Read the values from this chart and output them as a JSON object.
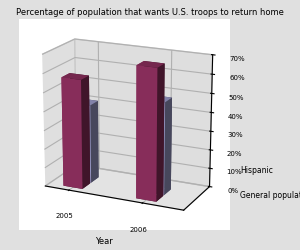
{
  "title": "Percentage of population that wants U.S. troops to return home",
  "xlabel": "Year",
  "years": [
    "2005",
    "2006"
  ],
  "series": {
    "General population": [
      42,
      49
    ],
    "Hispanic": [
      58,
      69
    ]
  },
  "colors": {
    "General population": "#AAAADD",
    "Hispanic": "#993366"
  },
  "ylim": [
    0,
    70
  ],
  "yticks": [
    0,
    10,
    20,
    30,
    40,
    50,
    60,
    70
  ],
  "ytick_labels": [
    "0%",
    "10%",
    "20%",
    "30%",
    "40%",
    "50%",
    "60%",
    "70%"
  ],
  "wall_left": "#C8C8C8",
  "wall_back": "#BBBBBB",
  "floor_color": "#888888",
  "bar_width": 0.4,
  "bar_depth": 0.4,
  "elev": 18,
  "azim": -65,
  "figsize": [
    3.0,
    2.51
  ],
  "dpi": 100,
  "title_fontsize": 6,
  "tick_fontsize": 5,
  "label_fontsize": 6
}
